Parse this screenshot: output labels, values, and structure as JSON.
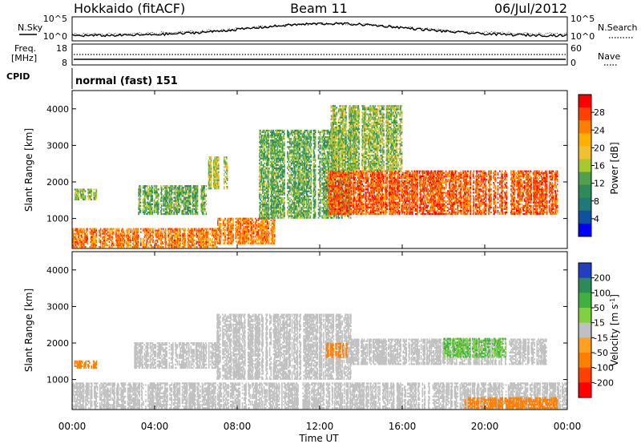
{
  "header": {
    "radar_title": "Hokkaido (fitACF)",
    "beam": "Beam 11",
    "date": "06/Jul/2012"
  },
  "noise_panel": {
    "left_label": "N.Sky",
    "right_label": "N.Search",
    "left_ticks": [
      "10^5",
      "10^0"
    ],
    "right_ticks": [
      "10^5",
      "10^0"
    ]
  },
  "freq_panel": {
    "left_label_1": "Freq.",
    "left_label_2": "[MHz]",
    "right_label": "Nave",
    "left_ticks": [
      "18",
      "8"
    ],
    "right_ticks": [
      "60",
      "0"
    ]
  },
  "cpid_panel": {
    "label": "CPID",
    "value": "normal (fast) 151"
  },
  "power_panel": {
    "ylabel": "Slant Range [km]",
    "yticks": [
      "1000",
      "2000",
      "3000",
      "4000"
    ],
    "colorbar_label": "Power [dB]",
    "colorbar_ticks": [
      "28",
      "24",
      "20",
      "16",
      "12",
      "8",
      "4"
    ],
    "colorbar_colors": [
      "#ff0000",
      "#ff4000",
      "#ff8000",
      "#ffb000",
      "#f0c030",
      "#a8c830",
      "#50a050",
      "#2e8b57",
      "#207878",
      "#1050a0",
      "#0000ff"
    ]
  },
  "velocity_panel": {
    "ylabel": "Slant Range [km]",
    "yticks": [
      "1000",
      "2000",
      "3000",
      "4000"
    ],
    "colorbar_label_main": "Velocity [m s",
    "colorbar_label_exp": "-1",
    "colorbar_label_end": "]",
    "colorbar_ticks": [
      "200",
      "100",
      "50",
      "15",
      "-15",
      "-50",
      "-100",
      "-200"
    ],
    "colorbar_colors": [
      "#2040c0",
      "#2e8b57",
      "#40b040",
      "#80d040",
      "#c0c0c0",
      "#ffa020",
      "#ff8000",
      "#ff4000",
      "#ff0000"
    ]
  },
  "xaxis": {
    "ticks": [
      "00:00",
      "04:00",
      "08:00",
      "12:00",
      "16:00",
      "20:00",
      "00:00"
    ],
    "label": "Time UT"
  },
  "chart_data": [
    {
      "type": "heatmap",
      "title": "Power",
      "xlabel": "Time UT",
      "ylabel": "Slant Range [km]",
      "xlim": [
        0,
        24
      ],
      "ylim": [
        180,
        4500
      ],
      "zlabel": "Power [dB]",
      "zlim": [
        0,
        30
      ],
      "echo_regions": [
        {
          "t0": 0.0,
          "t1": 7.0,
          "r0": 200,
          "r1": 700,
          "value": 24
        },
        {
          "t0": 0.1,
          "t1": 1.2,
          "r0": 1500,
          "r1": 1800,
          "value": 14
        },
        {
          "t0": 3.2,
          "t1": 6.5,
          "r0": 1100,
          "r1": 1900,
          "value": 12
        },
        {
          "t0": 6.5,
          "t1": 7.5,
          "r0": 1800,
          "r1": 2700,
          "value": 16
        },
        {
          "t0": 7.0,
          "t1": 9.8,
          "r0": 300,
          "r1": 1000,
          "value": 24
        },
        {
          "t0": 9.0,
          "t1": 13.5,
          "r0": 1000,
          "r1": 3400,
          "value": 12
        },
        {
          "t0": 12.3,
          "t1": 23.5,
          "r0": 1100,
          "r1": 2300,
          "value": 26
        },
        {
          "t0": 12.5,
          "t1": 16.0,
          "r0": 2300,
          "r1": 4100,
          "value": 14
        }
      ]
    },
    {
      "type": "heatmap",
      "title": "Velocity",
      "xlabel": "Time UT",
      "ylabel": "Slant Range [km]",
      "xlim": [
        0,
        24
      ],
      "ylim": [
        180,
        4500
      ],
      "zlabel": "Velocity [m s-1]",
      "zlim": [
        -200,
        200
      ],
      "echo_regions": [
        {
          "t0": 0.1,
          "t1": 1.2,
          "r0": 1300,
          "r1": 1500,
          "value": -60
        },
        {
          "t0": 0.0,
          "t1": 24.0,
          "r0": 200,
          "r1": 900,
          "value": 0
        },
        {
          "t0": 3.0,
          "t1": 7.0,
          "r0": 1300,
          "r1": 2000,
          "value": 0
        },
        {
          "t0": 7.0,
          "t1": 13.5,
          "r0": 1000,
          "r1": 2800,
          "value": 0
        },
        {
          "t0": 13.5,
          "t1": 23.0,
          "r0": 1400,
          "r1": 2100,
          "value": 0
        },
        {
          "t0": 18.0,
          "t1": 21.0,
          "r0": 1600,
          "r1": 2100,
          "value": 30
        },
        {
          "t0": 12.3,
          "t1": 13.3,
          "r0": 1600,
          "r1": 2000,
          "value": -60
        },
        {
          "t0": 19.0,
          "t1": 23.5,
          "r0": 200,
          "r1": 500,
          "value": -60
        }
      ]
    }
  ]
}
